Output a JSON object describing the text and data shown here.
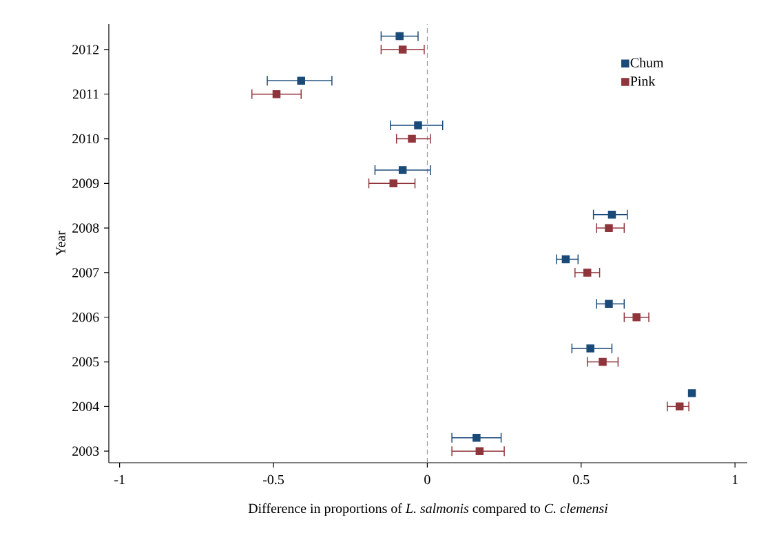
{
  "chart_data": {
    "type": "scatter",
    "orientation": "horizontal",
    "xlabel": "Difference in proportions of *L. salmonis* compared to *C. clemensi*",
    "ylabel": "Year",
    "categories": [
      "2012",
      "2011",
      "2010",
      "2009",
      "2008",
      "2007",
      "2006",
      "2005",
      "2004",
      "2003"
    ],
    "series": [
      {
        "name": "Chum",
        "color": "#1a4a78",
        "values": [
          -0.09,
          -0.41,
          -0.03,
          -0.08,
          0.6,
          0.45,
          0.59,
          0.53,
          0.86,
          0.16
        ],
        "errors": [
          [
            -0.15,
            -0.03
          ],
          [
            -0.52,
            -0.31
          ],
          [
            -0.12,
            0.05
          ],
          [
            -0.17,
            0.01
          ],
          [
            0.54,
            0.65
          ],
          [
            0.42,
            0.49
          ],
          [
            0.55,
            0.64
          ],
          [
            0.47,
            0.6
          ],
          null,
          [
            0.08,
            0.24
          ]
        ]
      },
      {
        "name": "Pink",
        "color": "#90353b",
        "values": [
          -0.08,
          -0.49,
          -0.05,
          -0.11,
          0.59,
          0.52,
          0.68,
          0.57,
          0.82,
          0.17
        ],
        "errors": [
          [
            -0.15,
            -0.01
          ],
          [
            -0.57,
            -0.41
          ],
          [
            -0.1,
            0.01
          ],
          [
            -0.19,
            -0.04
          ],
          [
            0.55,
            0.64
          ],
          [
            0.48,
            0.56
          ],
          [
            0.64,
            0.72
          ],
          [
            0.52,
            0.62
          ],
          [
            0.78,
            0.85
          ],
          [
            0.08,
            0.25
          ]
        ]
      }
    ],
    "xlim": [
      -1.035,
      1.04
    ],
    "xticks": [
      -1,
      -0.5,
      0,
      0.5,
      1
    ],
    "ref_lines": [
      {
        "axis": "x",
        "value": 0,
        "color": "#8c8c8c",
        "line_style": "dashed"
      }
    ],
    "legend": "top right",
    "marker": "square"
  }
}
